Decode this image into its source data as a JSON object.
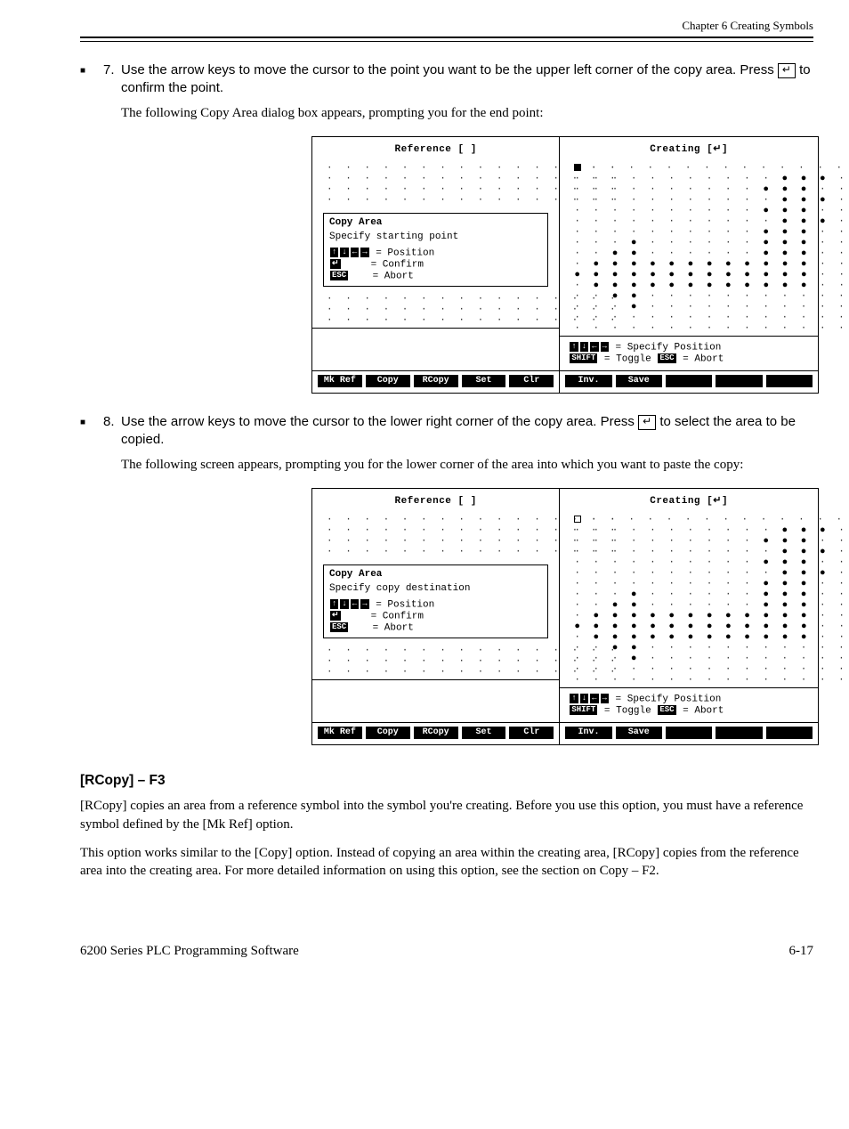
{
  "header": {
    "right": "Chapter 6   Creating Symbols"
  },
  "step7": {
    "num": "7.",
    "text_a": "Use the arrow keys to move the cursor to the point you want to be the upper left corner of the copy area. Press ",
    "key": "↵",
    "text_b": " to confirm the point.",
    "body": "The following Copy Area dialog box appears, prompting you for the end point:"
  },
  "ui1": {
    "left_title": "Reference [   ]",
    "right_title": "Creating [↵]",
    "dialog_title": "Copy Area",
    "dialog_sub": "Specify starting point",
    "dialog_l1a": " = Position",
    "dialog_l2": "= Confirm",
    "dialog_l3": "= Abort",
    "hint1": " = Specify Position",
    "hint2_a": " = Toggle ",
    "hint2_b": " = Abort",
    "softL": [
      "Mk Ref",
      "Copy",
      "RCopy",
      "Set",
      "Clr"
    ],
    "softR": [
      "Inv.",
      "Save",
      "",
      "",
      ""
    ]
  },
  "step8": {
    "num": "8.",
    "text_a": "Use the arrow keys to move the cursor to the lower right corner of the copy area. Press ",
    "key": "↵",
    "text_b": " to select the area to be copied.",
    "body": "The following screen appears, prompting you for the lower corner of the area into which you want to paste the copy:"
  },
  "ui2": {
    "left_title": "Reference [   ]",
    "right_title": "Creating [↵]",
    "dialog_title": "Copy Area",
    "dialog_sub": "Specify copy destination",
    "dialog_l1a": " = Position",
    "dialog_l2": "= Confirm",
    "dialog_l3": "= Abort",
    "hint1": " = Specify Position",
    "hint2_a": " = Toggle ",
    "hint2_b": " = Abort",
    "softL": [
      "Mk Ref",
      "Copy",
      "RCopy",
      "Set",
      "Clr"
    ],
    "softR": [
      "Inv.",
      "Save",
      "",
      "",
      ""
    ]
  },
  "heading2": "[RCopy] – F3",
  "rcopy_body": "[RCopy] copies an area from a reference symbol into the symbol you're creating. Before you use this option, you must have a reference symbol defined by the [Mk Ref] option. ",
  "note_text": "This option works similar to the [Copy] option. Instead of copying an area within the creating area, [RCopy] copies from the reference area into the creating area. For more detailed information on using this option, see the section on Copy – F2.",
  "footer": {
    "left": "6200 Series PLC Programming Software",
    "right": "6-17"
  },
  "grid": {
    "rows": 16,
    "cols": 16,
    "empty": "·",
    "filled": "●"
  },
  "glyph_top": "▪",
  "colors": {
    "fg": "#000000",
    "bg": "#ffffff"
  },
  "pattern": [
    "................",
    "...........###..",
    "..........###...",
    "...........###..",
    "..........###...",
    "...........###..",
    "..........###...",
    "...#......###...",
    "..##......###...",
    ".############...",
    "#############...",
    ".############...",
    "..##............",
    "...#............",
    "................",
    "................"
  ]
}
